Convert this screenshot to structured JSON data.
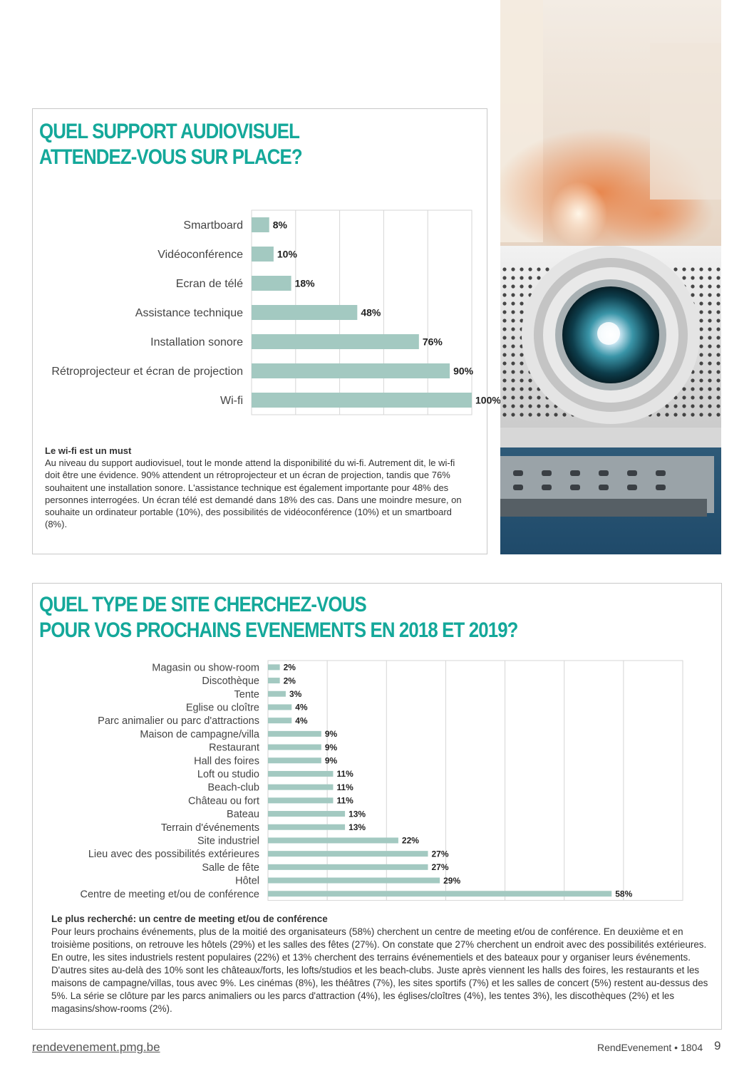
{
  "section1": {
    "title_line1": "QUEL SUPPORT AUDIOVISUEL",
    "title_line2": "ATTENDEZ-VOUS SUR PLACE?",
    "note_title": "Le wi-fi est un must",
    "note_text": "Au niveau du support audiovisuel, tout le monde attend la disponibilité du wi-fi. Autrement dit, le wi-fi doit être une évidence. 90% attendent un rétroprojecteur et un écran de projection, tandis que 76% souhaitent une installation sonore. L'assistance technique est également importante pour 48% des personnes interrogées. Un écran télé est demandé dans 18% des cas. Dans une moindre mesure, on souhaite un ordinateur portable (10%), des possibilités de vidéoconférence (10%) et un smartboard (8%)."
  },
  "section2": {
    "title_line1": "QUEL TYPE DE SITE CHERCHEZ-VOUS",
    "title_line2": "POUR VOS PROCHAINS EVENEMENTS EN 2018 ET 2019?",
    "note_title": "Le plus recherché: un centre de meeting et/ou de conférence",
    "note_text": "Pour leurs prochains événements, plus de la moitié des organisateurs (58%) cherchent un centre de meeting et/ou de conférence. En deuxième et en troisième positions, on retrouve les hôtels (29%) et les salles des fêtes (27%). On constate que 27% cherchent un endroit avec des possibilités extérieures. En outre, les sites industriels restent populaires (22%) et 13% cherchent des terrains événementiels et des bateaux pour y organiser leurs événements. D'autres sites au-delà des 10% sont les châteaux/forts, les lofts/studios et les beach-clubs. Juste après viennent les halls des foires, les restaurants et les maisons de campagne/villas, tous avec 9%. Les cinémas (8%), les théâtres (7%), les sites sportifs (7%) et les salles de concert (5%) restent au-dessus des 5%. La série se clôture par les parcs animaliers ou les parcs d'attraction (4%), les églises/cloîtres (4%), les tentes 3%), les discothèques (2%) et les magasins/show-rooms (2%)."
  },
  "chart_data": [
    {
      "type": "bar",
      "orientation": "horizontal",
      "categories": [
        "Smartboard",
        "Vidéoconférence",
        "Ecran de télé",
        "Assistance technique",
        "Installation sonore",
        "Rétroprojecteur et écran de projection",
        "Wi-fi"
      ],
      "values": [
        8,
        10,
        18,
        48,
        76,
        90,
        100
      ],
      "value_labels": [
        "8%",
        "10%",
        "18%",
        "48%",
        "76%",
        "90%",
        "100%"
      ],
      "xlim": [
        0,
        100
      ],
      "grid": true,
      "bar_color": "#a3c9c1"
    },
    {
      "type": "bar",
      "orientation": "horizontal",
      "categories": [
        "Magasin ou show-room",
        "Discothèque",
        "Tente",
        "Eglise ou cloître",
        "Parc animalier ou parc d'attractions",
        "Maison de campagne/villa",
        "Restaurant",
        "Hall des foires",
        "Loft ou studio",
        "Beach-club",
        "Château ou fort",
        "Bateau",
        "Terrain d'événements",
        "Site industriel",
        "Lieu avec des possibilités extérieures",
        "Salle de fête",
        "Hôtel",
        "Centre de meeting et/ou de conférence"
      ],
      "values": [
        2,
        2,
        3,
        4,
        4,
        9,
        9,
        9,
        11,
        11,
        11,
        13,
        13,
        22,
        27,
        27,
        29,
        58
      ],
      "value_labels": [
        "2%",
        "2%",
        "3%",
        "4%",
        "4%",
        "9%",
        "9%",
        "9%",
        "11%",
        "11%",
        "11%",
        "13%",
        "13%",
        "22%",
        "27%",
        "27%",
        "29%",
        "58%"
      ],
      "xlim": [
        0,
        70
      ],
      "grid": true,
      "bar_color": "#a3c9c1"
    }
  ],
  "footer": {
    "url": "rendevenement.pmg.be",
    "issue": "RendEvenement • 1804",
    "page_number": "9"
  },
  "colors": {
    "title": "#14a89a",
    "bar": "#a3c9c1",
    "grid": "#d6d6d6",
    "border": "#c8c8c8"
  },
  "icons": [
    "projector-photo"
  ]
}
